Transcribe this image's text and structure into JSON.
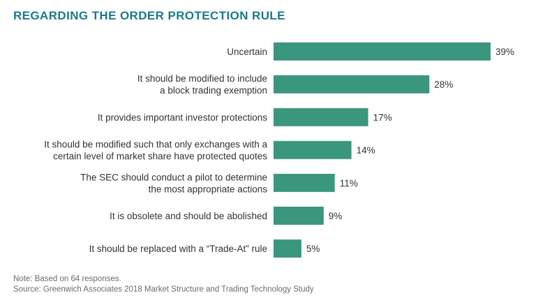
{
  "title": "REGARDING THE ORDER PROTECTION RULE",
  "note": "Note: Based on 64 responses.",
  "source": "Source: Greenwich Associates 2018 Market Structure and Trading Technology Study",
  "colors": {
    "title": "#1a7a8c",
    "bar": "#3a967c",
    "text": "#333333",
    "note": "#6b6b6b"
  },
  "chart_data": {
    "type": "bar",
    "orientation": "horizontal",
    "categories": [
      [
        "Uncertain"
      ],
      [
        "It should be modified to include",
        "a block trading exemption"
      ],
      [
        "It provides important investor protections"
      ],
      [
        "It should be modified such that only exchanges with a",
        "certain level of market share have protected quotes"
      ],
      [
        "The SEC should conduct a pilot to determine",
        "the most appropriate actions"
      ],
      [
        "It is obsolete and should be abolished"
      ],
      [
        "It should be replaced with a “Trade-At” rule"
      ]
    ],
    "values": [
      39,
      28,
      17,
      14,
      11,
      9,
      5
    ],
    "value_labels": [
      "39%",
      "28%",
      "17%",
      "14%",
      "11%",
      "9%",
      "5%"
    ],
    "unit": "%",
    "xlim": [
      0,
      39
    ],
    "grid": false,
    "legend": "none"
  }
}
